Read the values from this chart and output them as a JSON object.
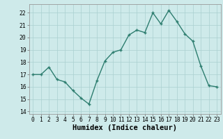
{
  "x": [
    0,
    1,
    2,
    3,
    4,
    5,
    6,
    7,
    8,
    9,
    10,
    11,
    12,
    13,
    14,
    15,
    16,
    17,
    18,
    19,
    20,
    21,
    22,
    23
  ],
  "y": [
    17.0,
    17.0,
    17.6,
    16.6,
    16.4,
    15.7,
    15.1,
    14.6,
    16.5,
    18.1,
    18.8,
    19.0,
    20.2,
    20.6,
    20.4,
    22.0,
    21.1,
    22.2,
    21.3,
    20.3,
    19.7,
    17.7,
    16.1,
    16.0
  ],
  "xlabel": "Humidex (Indice chaleur)",
  "ylim": [
    13.8,
    22.7
  ],
  "xlim": [
    -0.5,
    23.5
  ],
  "yticks": [
    14,
    15,
    16,
    17,
    18,
    19,
    20,
    21,
    22
  ],
  "xticks": [
    0,
    1,
    2,
    3,
    4,
    5,
    6,
    7,
    8,
    9,
    10,
    11,
    12,
    13,
    14,
    15,
    16,
    17,
    18,
    19,
    20,
    21,
    22,
    23
  ],
  "line_color": "#2d7d6f",
  "bg_color": "#ceeaea",
  "grid_color": "#aad0d0",
  "tick_fontsize": 5.8,
  "xlabel_fontsize": 7.5,
  "marker_size": 3.5,
  "line_width": 1.0
}
